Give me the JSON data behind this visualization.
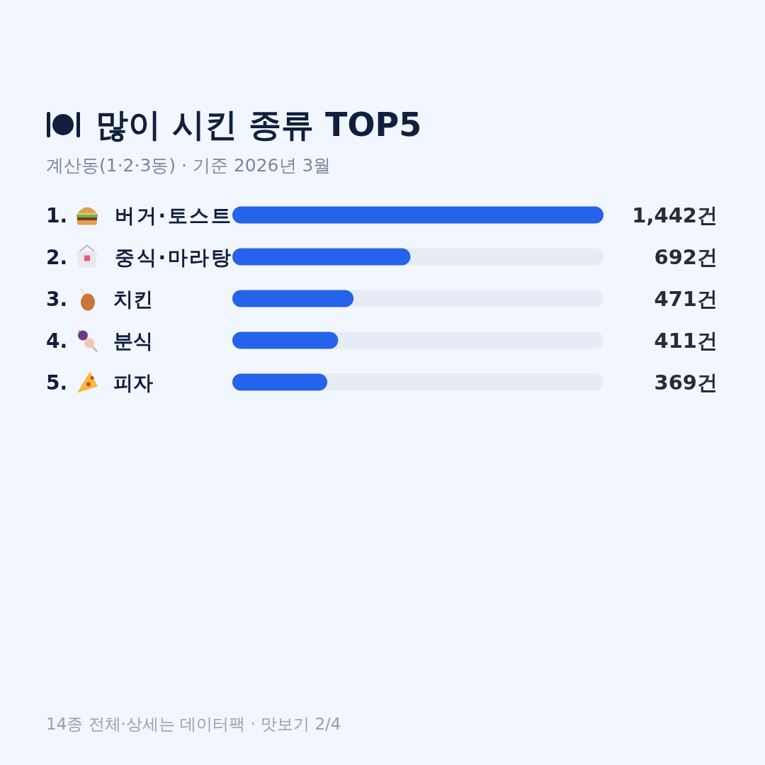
{
  "chart_data": {
    "type": "bar",
    "orientation": "horizontal",
    "title": "많이 시킨 종류 TOP5",
    "subtitle": "계산동(1·2·3동) · 기준 2026년 3월",
    "categories": [
      "1. 버거·토스트",
      "2. 중식·마라탕",
      "3. 치킨",
      "4. 분식",
      "5. 피자"
    ],
    "values": [
      1442,
      692,
      471,
      411,
      369
    ],
    "value_labels": [
      "1,442건",
      "692건",
      "471건",
      "411건",
      "369건"
    ],
    "color": "#2563eb",
    "xlim": [
      0,
      1442
    ],
    "annotations": [
      "14종 전체·상세는 데이터팩 · 맛보기 2/4"
    ]
  }
}
